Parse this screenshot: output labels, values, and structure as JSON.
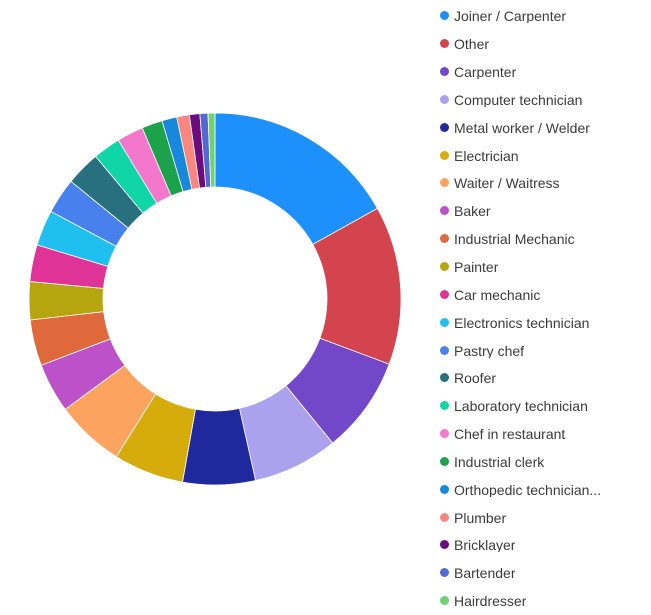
{
  "chart_data": {
    "type": "pie",
    "subtype": "donut",
    "title": "",
    "legend_position": "right",
    "direction": "clockwise",
    "start_angle_deg": 0,
    "inner_radius_ratio": 0.6,
    "units": "percent_share",
    "categories": [
      "Joiner / Carpenter",
      "Other",
      "Carpenter",
      "Computer technician",
      "Metal worker / Welder",
      "Electrician",
      "Waiter / Waitress",
      "Baker",
      "Industrial Mechanic",
      "Painter",
      "Car mechanic",
      "Electronics technician",
      "Pastry chef",
      "Roofer",
      "Laboratory technician",
      "Chef in restaurant",
      "Industrial clerk",
      "Orthopedic technician...",
      "Plumber",
      "Bricklayer",
      "Bartender",
      "Hairdresser"
    ],
    "values": [
      16.9,
      13.8,
      8.4,
      7.4,
      6.3,
      6.1,
      6.0,
      4.3,
      4.0,
      3.3,
      3.2,
      3.1,
      3.1,
      3.0,
      2.4,
      2.3,
      1.8,
      1.3,
      1.1,
      0.9,
      0.7,
      0.6
    ],
    "colors": [
      "#1E90FB",
      "#D4444E",
      "#7348C8",
      "#ABA1EC",
      "#20289E",
      "#D6AC0C",
      "#FCA45F",
      "#BC51C9",
      "#E0693B",
      "#B5A50F",
      "#E03397",
      "#1FC0F0",
      "#4881EE",
      "#28707D",
      "#10D5A6",
      "#F477CE",
      "#1CA24B",
      "#1888DC",
      "#F9867F",
      "#6A0B7E",
      "#5468D2",
      "#6FD374"
    ]
  }
}
